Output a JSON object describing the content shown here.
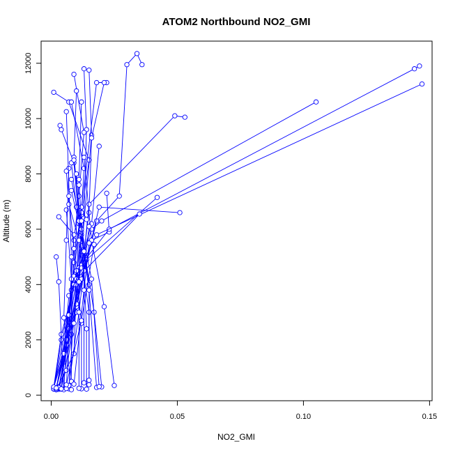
{
  "chart_data": {
    "type": "line",
    "title": "ATOM2 Northbound NO2_GMI",
    "xlabel": "NO2_GMI",
    "ylabel": "Altitude (m)",
    "xlim": [
      -0.004,
      0.151
    ],
    "ylim": [
      -200,
      12800
    ],
    "xticks": [
      0.0,
      0.05,
      0.1,
      0.15
    ],
    "xtick_labels": [
      "0.00",
      "0.05",
      "0.10",
      "0.15"
    ],
    "yticks": [
      0,
      2000,
      4000,
      6000,
      8000,
      10000,
      12000
    ],
    "ytick_labels": [
      "0",
      "2000",
      "4000",
      "6000",
      "8000",
      "10000",
      "12000"
    ],
    "marker": "open-circle",
    "color": "#0000ff",
    "grid": false,
    "series": [
      {
        "x": [
          0.002,
          0.009,
          0.01,
          0.012,
          0.015,
          0.007,
          0.001
        ],
        "y": [
          200,
          1500,
          4000,
          6500,
          8500,
          10600,
          10950
        ]
      },
      {
        "x": [
          0.002,
          0.006,
          0.01,
          0.011,
          0.009,
          0.004,
          0.0035
        ],
        "y": [
          250,
          1800,
          4200,
          6200,
          8400,
          9600,
          9750
        ]
      },
      {
        "x": [
          0.003,
          0.005,
          0.008,
          0.012,
          0.013,
          0.008
        ],
        "y": [
          300,
          1200,
          3800,
          6600,
          8200,
          10600
        ]
      },
      {
        "x": [
          0.001,
          0.004,
          0.01,
          0.013,
          0.014,
          0.013
        ],
        "y": [
          220,
          2000,
          4300,
          6400,
          9600,
          11800
        ]
      },
      {
        "x": [
          0.002,
          0.007,
          0.012,
          0.016,
          0.015
        ],
        "y": [
          240,
          2500,
          5200,
          9400,
          11750
        ]
      },
      {
        "x": [
          0.004,
          0.008,
          0.009,
          0.011,
          0.013,
          0.009
        ],
        "y": [
          230,
          2200,
          5600,
          7200,
          9500,
          11600
        ]
      },
      {
        "x": [
          0.001,
          0.005,
          0.009,
          0.012,
          0.018,
          0.022
        ],
        "y": [
          280,
          1500,
          4800,
          6800,
          11300,
          11300
        ]
      },
      {
        "x": [
          0.003,
          0.008,
          0.013,
          0.015,
          0.016,
          0.021
        ],
        "y": [
          210,
          2600,
          5200,
          6600,
          9300,
          11300
        ]
      },
      {
        "x": [
          0.002,
          0.01,
          0.012,
          0.009,
          0.01
        ],
        "y": [
          260,
          3000,
          6000,
          8600,
          11000
        ]
      },
      {
        "x": [
          0.005,
          0.006,
          0.009,
          0.011,
          0.012
        ],
        "y": [
          220,
          1800,
          4300,
          7800,
          10600
        ]
      },
      {
        "x": [
          0.001,
          0.004,
          0.011,
          0.016,
          0.019
        ],
        "y": [
          290,
          2200,
          4600,
          6200,
          9000
        ]
      },
      {
        "x": [
          0.002,
          0.007,
          0.016,
          0.023,
          0.022
        ],
        "y": [
          200,
          2400,
          5600,
          5900,
          7300
        ]
      },
      {
        "x": [
          0.003,
          0.01,
          0.018,
          0.027,
          0.03,
          0.034,
          0.036
        ],
        "y": [
          240,
          3200,
          6300,
          7200,
          11950,
          12350,
          11950
        ]
      },
      {
        "x": [
          0.001,
          0.009,
          0.016,
          0.02,
          0.105
        ],
        "y": [
          230,
          4000,
          6000,
          6300,
          10600
        ]
      },
      {
        "x": [
          0.002,
          0.01,
          0.023,
          0.144,
          0.146
        ],
        "y": [
          210,
          4500,
          6000,
          11800,
          11900
        ]
      },
      {
        "x": [
          0.003,
          0.012,
          0.018,
          0.147
        ],
        "y": [
          260,
          4700,
          5800,
          11250
        ]
      },
      {
        "x": [
          0.004,
          0.006,
          0.014,
          0.042
        ],
        "y": [
          220,
          2000,
          4900,
          7150
        ]
      },
      {
        "x": [
          0.002,
          0.01,
          0.019,
          0.051
        ],
        "y": [
          250,
          3300,
          6800,
          6600
        ]
      },
      {
        "x": [
          0.007,
          0.01,
          0.035
        ],
        "y": [
          230,
          4200,
          6550
        ]
      },
      {
        "x": [
          0.001,
          0.012,
          0.015,
          0.049,
          0.053
        ],
        "y": [
          300,
          4200,
          6900,
          10100,
          10050
        ]
      },
      {
        "x": [
          0.003,
          0.006,
          0.009,
          0.012
        ],
        "y": [
          280,
          900,
          2600,
          5400
        ]
      },
      {
        "x": [
          0.002,
          0.005,
          0.007,
          0.012
        ],
        "y": [
          260,
          1500,
          3600,
          4600
        ]
      },
      {
        "x": [
          0.005,
          0.003,
          0.002
        ],
        "y": [
          200,
          4100,
          5000
        ]
      },
      {
        "x": [
          0.004,
          0.007,
          0.009,
          0.003
        ],
        "y": [
          230,
          2900,
          5800,
          6450
        ]
      },
      {
        "x": [
          0.006,
          0.008,
          0.006
        ],
        "y": [
          240,
          4200,
          6700
        ]
      },
      {
        "x": [
          0.008,
          0.005,
          0.006,
          0.007
        ],
        "y": [
          200,
          2800,
          5600,
          8200
        ]
      },
      {
        "x": [
          0.008,
          0.008,
          0.006
        ],
        "y": [
          500,
          5000,
          10250
        ]
      },
      {
        "x": [
          0.014,
          0.014,
          0.013,
          0.01,
          0.008
        ],
        "y": [
          220,
          2400,
          4500,
          6800,
          8400
        ]
      },
      {
        "x": [
          0.015,
          0.015,
          0.011,
          0.007,
          0.006
        ],
        "y": [
          380,
          3000,
          5600,
          6900,
          8100
        ]
      },
      {
        "x": [
          0.015,
          0.015,
          0.012,
          0.008
        ],
        "y": [
          540,
          4000,
          5800,
          7400
        ]
      },
      {
        "x": [
          0.012,
          0.012,
          0.009,
          0.007
        ],
        "y": [
          230,
          2600,
          5300,
          7200
        ]
      },
      {
        "x": [
          0.02,
          0.017,
          0.012,
          0.009
        ],
        "y": [
          300,
          3000,
          5900,
          8500
        ]
      },
      {
        "x": [
          0.025,
          0.021,
          0.016,
          0.013
        ],
        "y": [
          350,
          3200,
          5600,
          8600
        ]
      },
      {
        "x": [
          0.018,
          0.015,
          0.011,
          0.01
        ],
        "y": [
          280,
          3800,
          6300,
          8000
        ]
      },
      {
        "x": [
          0.019,
          0.016,
          0.012,
          0.008
        ],
        "y": [
          310,
          4200,
          6000,
          7800
        ]
      },
      {
        "x": [
          0.013,
          0.013,
          0.011
        ],
        "y": [
          450,
          5200,
          7600
        ]
      },
      {
        "x": [
          0.011,
          0.011,
          0.012,
          0.014
        ],
        "y": [
          250,
          4100,
          6300,
          6350
        ]
      },
      {
        "x": [
          0.009,
          0.013,
          0.015
        ],
        "y": [
          400,
          3800,
          5500
        ]
      },
      {
        "x": [
          0.007,
          0.011,
          0.015
        ],
        "y": [
          350,
          3000,
          6100
        ]
      },
      {
        "x": [
          0.006,
          0.012,
          0.017
        ],
        "y": [
          380,
          2700,
          5450
        ]
      }
    ]
  }
}
